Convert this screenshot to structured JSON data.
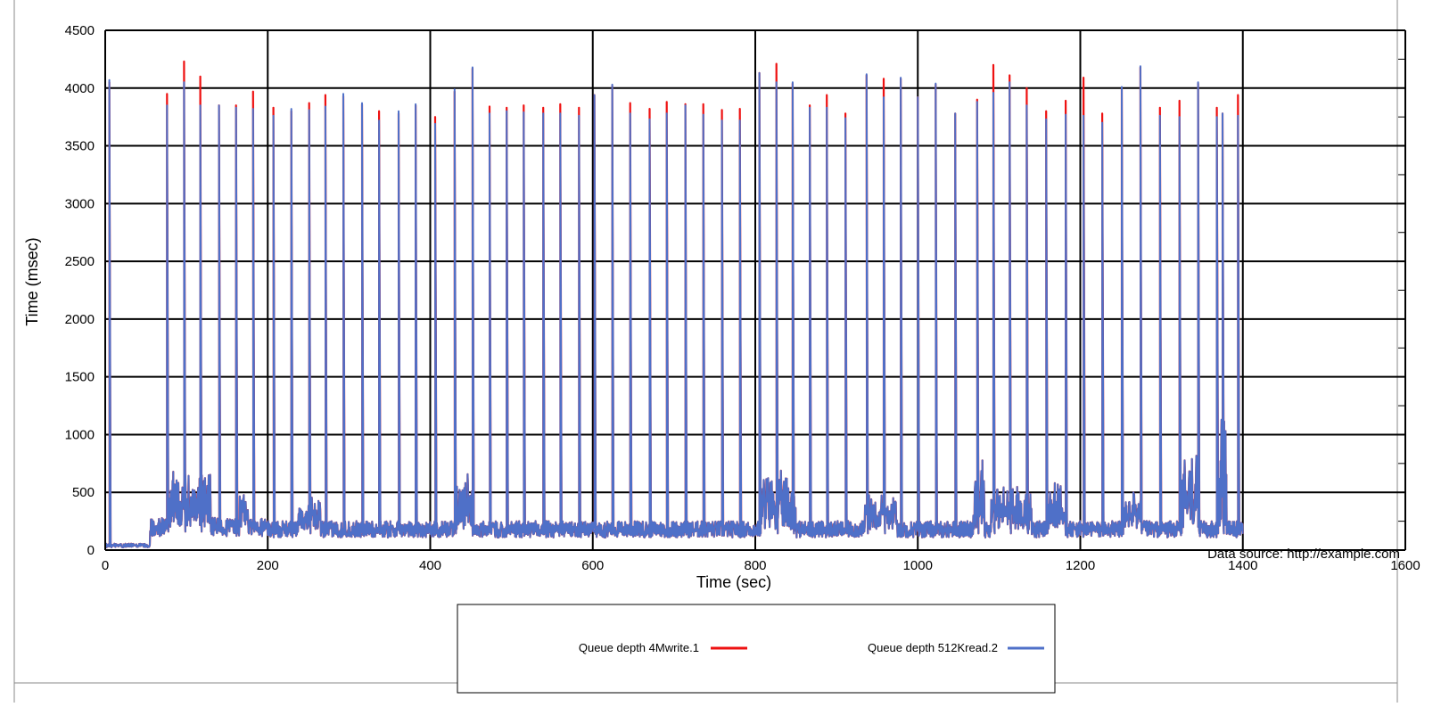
{
  "chart_data": {
    "type": "line",
    "xlabel": "Time (sec)",
    "ylabel": "Time (msec)",
    "xlim": [
      0,
      1600
    ],
    "ylim": [
      0,
      4500
    ],
    "x_ticks": [
      0,
      200,
      400,
      600,
      800,
      1000,
      1200,
      1400,
      1600
    ],
    "y_ticks": [
      0,
      500,
      1000,
      1500,
      2000,
      2500,
      3000,
      3500,
      4000,
      4500
    ],
    "annotation": "Data source: http://example.com",
    "grid": true,
    "legend_position": "bottom",
    "series": [
      {
        "name": "Queue depth 4Mwrite.1",
        "color": "#ee1111",
        "spikes": [
          {
            "x": 5,
            "y": 4050
          },
          {
            "x": 76,
            "y": 3950
          },
          {
            "x": 97,
            "y": 4230
          },
          {
            "x": 117,
            "y": 4100
          },
          {
            "x": 140,
            "y": 3850
          },
          {
            "x": 161,
            "y": 3850
          },
          {
            "x": 182,
            "y": 3970
          },
          {
            "x": 207,
            "y": 3830
          },
          {
            "x": 229,
            "y": 3800
          },
          {
            "x": 251,
            "y": 3870
          },
          {
            "x": 271,
            "y": 3940
          },
          {
            "x": 293,
            "y": 3930
          },
          {
            "x": 316,
            "y": 3860
          },
          {
            "x": 337,
            "y": 3800
          },
          {
            "x": 361,
            "y": 3780
          },
          {
            "x": 382,
            "y": 3850
          },
          {
            "x": 406,
            "y": 3750
          },
          {
            "x": 430,
            "y": 3970
          },
          {
            "x": 452,
            "y": 4170
          },
          {
            "x": 473,
            "y": 3840
          },
          {
            "x": 494,
            "y": 3830
          },
          {
            "x": 515,
            "y": 3850
          },
          {
            "x": 539,
            "y": 3830
          },
          {
            "x": 560,
            "y": 3860
          },
          {
            "x": 583,
            "y": 3830
          },
          {
            "x": 602,
            "y": 3940
          },
          {
            "x": 624,
            "y": 4020
          },
          {
            "x": 646,
            "y": 3870
          },
          {
            "x": 670,
            "y": 3820
          },
          {
            "x": 691,
            "y": 3880
          },
          {
            "x": 714,
            "y": 3860
          },
          {
            "x": 736,
            "y": 3860
          },
          {
            "x": 759,
            "y": 3810
          },
          {
            "x": 781,
            "y": 3820
          },
          {
            "x": 805,
            "y": 4130
          },
          {
            "x": 826,
            "y": 4210
          },
          {
            "x": 846,
            "y": 4040
          },
          {
            "x": 867,
            "y": 3850
          },
          {
            "x": 888,
            "y": 3940
          },
          {
            "x": 911,
            "y": 3780
          },
          {
            "x": 937,
            "y": 4110
          },
          {
            "x": 958,
            "y": 4080
          },
          {
            "x": 979,
            "y": 4080
          },
          {
            "x": 1000,
            "y": 3920
          },
          {
            "x": 1022,
            "y": 4030
          },
          {
            "x": 1046,
            "y": 3780
          },
          {
            "x": 1073,
            "y": 3900
          },
          {
            "x": 1093,
            "y": 4200
          },
          {
            "x": 1113,
            "y": 4110
          },
          {
            "x": 1134,
            "y": 4000
          },
          {
            "x": 1158,
            "y": 3800
          },
          {
            "x": 1182,
            "y": 3890
          },
          {
            "x": 1204,
            "y": 4090
          },
          {
            "x": 1227,
            "y": 3780
          },
          {
            "x": 1251,
            "y": 4000
          },
          {
            "x": 1274,
            "y": 4180
          },
          {
            "x": 1298,
            "y": 3830
          },
          {
            "x": 1322,
            "y": 3890
          },
          {
            "x": 1345,
            "y": 4040
          },
          {
            "x": 1368,
            "y": 3830
          },
          {
            "x": 1375,
            "y": 3780
          },
          {
            "x": 1394,
            "y": 3940
          }
        ]
      },
      {
        "name": "Queue depth 512Kread.2",
        "color": "#4f70c8",
        "spikes": [
          {
            "x": 5,
            "y": 4070
          },
          {
            "x": 76,
            "y": 3850
          },
          {
            "x": 97,
            "y": 4050
          },
          {
            "x": 117,
            "y": 3850
          },
          {
            "x": 140,
            "y": 3850
          },
          {
            "x": 161,
            "y": 3830
          },
          {
            "x": 182,
            "y": 3820
          },
          {
            "x": 207,
            "y": 3760
          },
          {
            "x": 229,
            "y": 3820
          },
          {
            "x": 251,
            "y": 3810
          },
          {
            "x": 271,
            "y": 3840
          },
          {
            "x": 293,
            "y": 3950
          },
          {
            "x": 316,
            "y": 3870
          },
          {
            "x": 337,
            "y": 3720
          },
          {
            "x": 361,
            "y": 3800
          },
          {
            "x": 382,
            "y": 3860
          },
          {
            "x": 406,
            "y": 3690
          },
          {
            "x": 430,
            "y": 3990
          },
          {
            "x": 452,
            "y": 4180
          },
          {
            "x": 473,
            "y": 3780
          },
          {
            "x": 494,
            "y": 3800
          },
          {
            "x": 515,
            "y": 3790
          },
          {
            "x": 539,
            "y": 3780
          },
          {
            "x": 560,
            "y": 3780
          },
          {
            "x": 583,
            "y": 3760
          },
          {
            "x": 602,
            "y": 3940
          },
          {
            "x": 624,
            "y": 4030
          },
          {
            "x": 646,
            "y": 3780
          },
          {
            "x": 670,
            "y": 3730
          },
          {
            "x": 691,
            "y": 3780
          },
          {
            "x": 714,
            "y": 3850
          },
          {
            "x": 736,
            "y": 3770
          },
          {
            "x": 759,
            "y": 3720
          },
          {
            "x": 781,
            "y": 3720
          },
          {
            "x": 805,
            "y": 4130
          },
          {
            "x": 826,
            "y": 4050
          },
          {
            "x": 846,
            "y": 4050
          },
          {
            "x": 867,
            "y": 3830
          },
          {
            "x": 888,
            "y": 3830
          },
          {
            "x": 911,
            "y": 3740
          },
          {
            "x": 937,
            "y": 4120
          },
          {
            "x": 958,
            "y": 3920
          },
          {
            "x": 979,
            "y": 4090
          },
          {
            "x": 1000,
            "y": 3920
          },
          {
            "x": 1022,
            "y": 4040
          },
          {
            "x": 1046,
            "y": 3780
          },
          {
            "x": 1073,
            "y": 3880
          },
          {
            "x": 1093,
            "y": 3960
          },
          {
            "x": 1113,
            "y": 4050
          },
          {
            "x": 1134,
            "y": 3850
          },
          {
            "x": 1158,
            "y": 3730
          },
          {
            "x": 1182,
            "y": 3770
          },
          {
            "x": 1204,
            "y": 3760
          },
          {
            "x": 1227,
            "y": 3700
          },
          {
            "x": 1251,
            "y": 4010
          },
          {
            "x": 1274,
            "y": 4190
          },
          {
            "x": 1298,
            "y": 3760
          },
          {
            "x": 1322,
            "y": 3750
          },
          {
            "x": 1345,
            "y": 4050
          },
          {
            "x": 1368,
            "y": 3750
          },
          {
            "x": 1375,
            "y": 3780
          },
          {
            "x": 1394,
            "y": 3760
          }
        ],
        "baseline_segments": [
          {
            "x_start": 0,
            "x_end": 55,
            "level": 40
          },
          {
            "x_start": 55,
            "x_end": 75,
            "level": 200
          },
          {
            "x_start": 75,
            "x_end": 200,
            "level": 200
          },
          {
            "x_start": 200,
            "x_end": 1400,
            "level": 180
          }
        ],
        "bursts": [
          {
            "x_start": 78,
            "x_end": 130,
            "level": 650
          },
          {
            "x_start": 165,
            "x_end": 176,
            "level": 500
          },
          {
            "x_start": 238,
            "x_end": 265,
            "level": 450
          },
          {
            "x_start": 430,
            "x_end": 452,
            "level": 650
          },
          {
            "x_start": 806,
            "x_end": 850,
            "level": 650
          },
          {
            "x_start": 935,
            "x_end": 975,
            "level": 520
          },
          {
            "x_start": 1068,
            "x_end": 1082,
            "level": 850
          },
          {
            "x_start": 1090,
            "x_end": 1140,
            "level": 550
          },
          {
            "x_start": 1160,
            "x_end": 1182,
            "level": 560
          },
          {
            "x_start": 1253,
            "x_end": 1275,
            "level": 500
          },
          {
            "x_start": 1325,
            "x_end": 1345,
            "level": 820
          },
          {
            "x_start": 1370,
            "x_end": 1380,
            "level": 1100
          }
        ]
      }
    ]
  }
}
